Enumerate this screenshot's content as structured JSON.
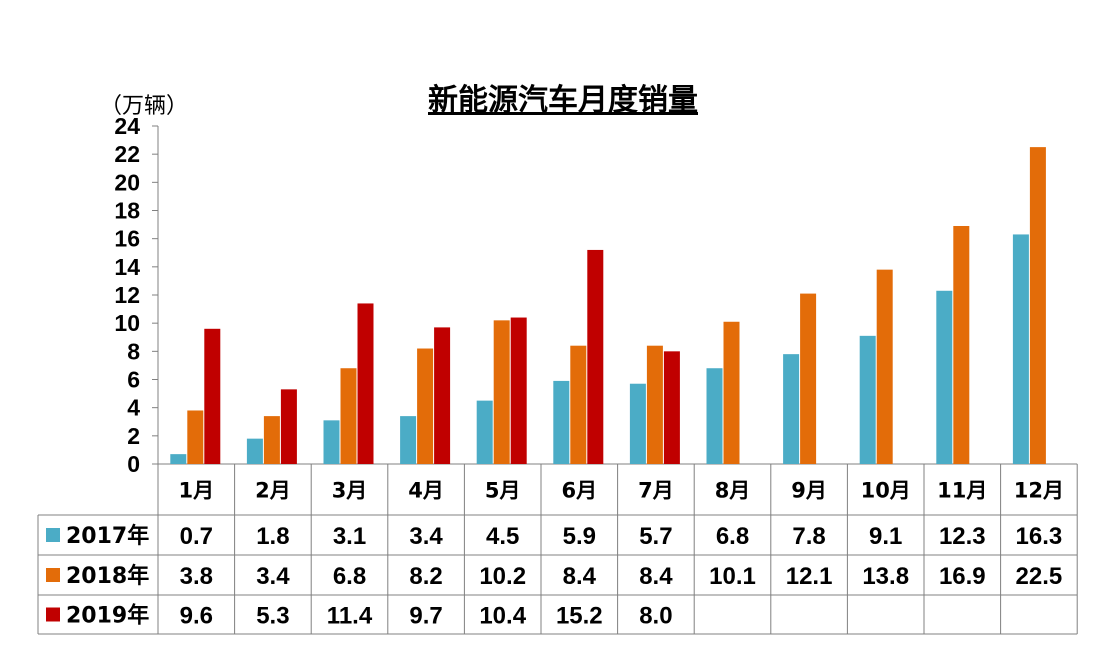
{
  "chart_data": {
    "type": "bar",
    "title": "新能源汽车月度销量",
    "ylabel": "（万辆）",
    "ylim": [
      0,
      24
    ],
    "yticks": [
      "0",
      "2",
      "4",
      "6",
      "8",
      "10",
      "12",
      "14",
      "16",
      "18",
      "20",
      "22",
      "24"
    ],
    "categories": [
      "1月",
      "2月",
      "3月",
      "4月",
      "5月",
      "6月",
      "7月",
      "8月",
      "9月",
      "10月",
      "11月",
      "12月"
    ],
    "series": [
      {
        "name": "2017年",
        "color": "#4bacc6",
        "values": [
          0.7,
          1.8,
          3.1,
          3.4,
          4.5,
          5.9,
          5.7,
          6.8,
          7.8,
          9.1,
          12.3,
          16.3
        ]
      },
      {
        "name": "2018年",
        "color": "#e36c09",
        "values": [
          3.8,
          3.4,
          6.8,
          8.2,
          10.2,
          8.4,
          8.4,
          10.1,
          12.1,
          13.8,
          16.9,
          22.5
        ]
      },
      {
        "name": "2019年",
        "color": "#c00000",
        "values": [
          9.6,
          5.3,
          11.4,
          9.7,
          10.4,
          15.2,
          8.0,
          null,
          null,
          null,
          null,
          null
        ]
      }
    ],
    "value_labels": [
      [
        "0.7",
        "1.8",
        "3.1",
        "3.4",
        "4.5",
        "5.9",
        "5.7",
        "6.8",
        "7.8",
        "9.1",
        "12.3",
        "16.3"
      ],
      [
        "3.8",
        "3.4",
        "6.8",
        "8.2",
        "10.2",
        "8.4",
        "8.4",
        "10.1",
        "12.1",
        "13.8",
        "16.9",
        "22.5"
      ],
      [
        "9.6",
        "5.3",
        "11.4",
        "9.7",
        "10.4",
        "15.2",
        "8.0",
        "",
        "",
        "",
        "",
        ""
      ]
    ]
  }
}
